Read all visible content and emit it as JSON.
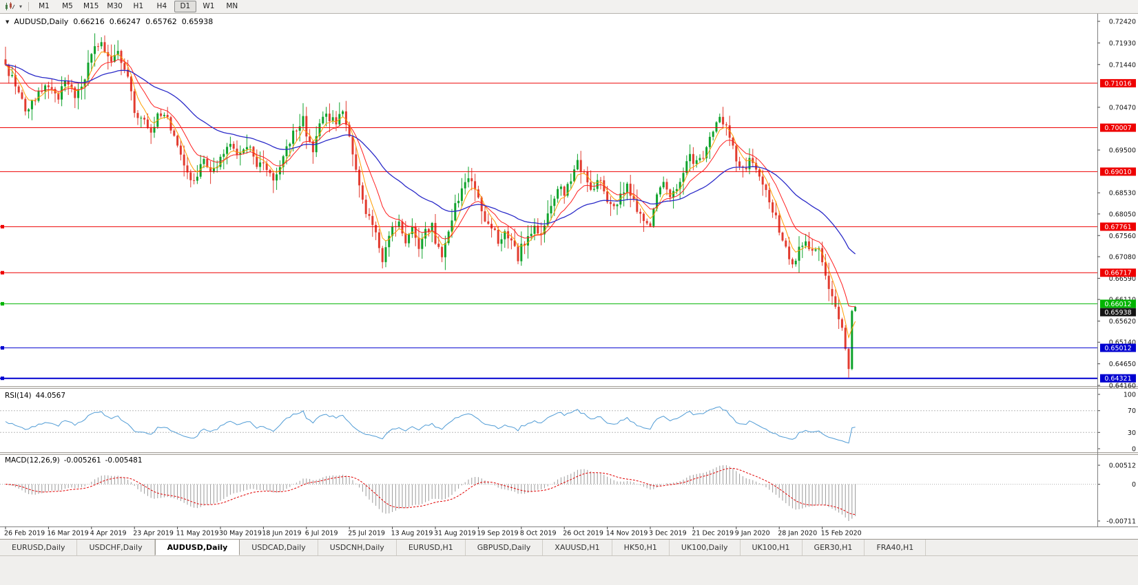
{
  "toolbar": {
    "timeframes": [
      {
        "label": "M1"
      },
      {
        "label": "M5"
      },
      {
        "label": "M15"
      },
      {
        "label": "M30"
      },
      {
        "label": "H1"
      },
      {
        "label": "H4"
      },
      {
        "label": "D1",
        "active": true
      },
      {
        "label": "W1"
      },
      {
        "label": "MN"
      }
    ]
  },
  "chart": {
    "title": "AUDUSD,Daily",
    "open": "0.66216",
    "high": "0.66247",
    "low": "0.65762",
    "close": "0.65938"
  },
  "chart_data": {
    "type": "candlestick",
    "symbol": "AUDUSD",
    "timeframe": "Daily",
    "last_ohlc": {
      "open": 0.66216,
      "high": 0.66247,
      "low": 0.65762,
      "close": 0.65938
    },
    "price_range": {
      "top": 0.7242,
      "bottom": 0.6416
    },
    "bar_count": 258,
    "colors": {
      "bull": "#0fa32c",
      "bear": "#e23b2f"
    },
    "price_axis": {
      "ticks": [
        "0.72420",
        "0.71930",
        "0.71440",
        "0.70470",
        "0.69500",
        "0.68530",
        "0.68050",
        "0.67560",
        "0.67080",
        "0.66590",
        "0.66110",
        "0.65620",
        "0.65140",
        "0.64650",
        "0.64160"
      ],
      "badges": [
        {
          "v": "0.71016",
          "bg": "#ee0000"
        },
        {
          "v": "0.70007",
          "bg": "#ee0000"
        },
        {
          "v": "0.69010",
          "bg": "#ee0000"
        },
        {
          "v": "0.67761",
          "bg": "#ee0000"
        },
        {
          "v": "0.66717",
          "bg": "#ee0000"
        },
        {
          "v": "0.66012",
          "bg": "#00b400"
        },
        {
          "v": "0.65938",
          "bg": "#151515"
        },
        {
          "v": "0.65012",
          "bg": "#0000d0"
        },
        {
          "v": "0.64321",
          "bg": "#0000d0"
        }
      ]
    },
    "lines": [
      {
        "v": 0.71016,
        "c": "#ee0000",
        "w": 1
      },
      {
        "v": 0.70007,
        "c": "#ee0000",
        "w": 1
      },
      {
        "v": 0.6901,
        "c": "#ee0000",
        "w": 1
      },
      {
        "v": 0.67761,
        "c": "#ee0000",
        "w": 1,
        "m": true
      },
      {
        "v": 0.66717,
        "c": "#ee0000",
        "w": 1,
        "m": true
      },
      {
        "v": 0.66012,
        "c": "#00b400",
        "w": 1,
        "m": true
      },
      {
        "v": 0.65012,
        "c": "#0000d0",
        "w": 1,
        "m": true
      },
      {
        "v": 0.64321,
        "c": "#0000d0",
        "w": 2,
        "m": true
      }
    ],
    "moving_averages": [
      {
        "name": "fast",
        "period": 5,
        "color": "#ff9e00",
        "width": 1
      },
      {
        "name": "medium",
        "period": 12,
        "color": "#ff1e1e",
        "width": 1
      },
      {
        "name": "slow",
        "period": 40,
        "color": "#2929c8",
        "width": 1.3
      }
    ],
    "anchors": [
      [
        0,
        0.7135
      ],
      [
        3,
        0.71
      ],
      [
        6,
        0.7038
      ],
      [
        10,
        0.7082
      ],
      [
        13,
        0.709
      ],
      [
        16,
        0.7062
      ],
      [
        18,
        0.7108
      ],
      [
        21,
        0.7075
      ],
      [
        24,
        0.7118
      ],
      [
        27,
        0.718
      ],
      [
        29,
        0.7196
      ],
      [
        32,
        0.715
      ],
      [
        34,
        0.7172
      ],
      [
        37,
        0.712
      ],
      [
        39,
        0.703
      ],
      [
        42,
        0.7015
      ],
      [
        44,
        0.6992
      ],
      [
        46,
        0.7032
      ],
      [
        49,
        0.7018
      ],
      [
        52,
        0.6955
      ],
      [
        55,
        0.6898
      ],
      [
        57,
        0.6872
      ],
      [
        60,
        0.6928
      ],
      [
        63,
        0.6902
      ],
      [
        65,
        0.6938
      ],
      [
        68,
        0.6972
      ],
      [
        70,
        0.6938
      ],
      [
        73,
        0.6962
      ],
      [
        76,
        0.692
      ],
      [
        78,
        0.6928
      ],
      [
        81,
        0.6878
      ],
      [
        84,
        0.6938
      ],
      [
        87,
        0.6992
      ],
      [
        90,
        0.7022
      ],
      [
        91,
        0.6988
      ],
      [
        93,
        0.6952
      ],
      [
        95,
        0.7002
      ],
      [
        97,
        0.7032
      ],
      [
        100,
        0.7008
      ],
      [
        102,
        0.7038
      ],
      [
        104,
        0.6978
      ],
      [
        106,
        0.69
      ],
      [
        108,
        0.6832
      ],
      [
        110,
        0.6796
      ],
      [
        112,
        0.6756
      ],
      [
        114,
        0.6705
      ],
      [
        116,
        0.6756
      ],
      [
        117,
        0.6775
      ],
      [
        119,
        0.6786
      ],
      [
        121,
        0.6746
      ],
      [
        123,
        0.6772
      ],
      [
        125,
        0.6716
      ],
      [
        127,
        0.6766
      ],
      [
        129,
        0.678
      ],
      [
        130,
        0.6736
      ],
      [
        132,
        0.6716
      ],
      [
        134,
        0.6762
      ],
      [
        136,
        0.6822
      ],
      [
        138,
        0.6856
      ],
      [
        140,
        0.6882
      ],
      [
        142,
        0.6866
      ],
      [
        143,
        0.6842
      ],
      [
        145,
        0.6796
      ],
      [
        147,
        0.6772
      ],
      [
        149,
        0.6746
      ],
      [
        151,
        0.6766
      ],
      [
        153,
        0.6742
      ],
      [
        155,
        0.6706
      ],
      [
        156,
        0.6732
      ],
      [
        158,
        0.6746
      ],
      [
        160,
        0.6776
      ],
      [
        162,
        0.6762
      ],
      [
        164,
        0.6812
      ],
      [
        166,
        0.6846
      ],
      [
        168,
        0.6872
      ],
      [
        169,
        0.6852
      ],
      [
        171,
        0.6886
      ],
      [
        173,
        0.6926
      ],
      [
        175,
        0.6896
      ],
      [
        177,
        0.6856
      ],
      [
        179,
        0.6882
      ],
      [
        181,
        0.6862
      ],
      [
        182,
        0.6842
      ],
      [
        184,
        0.6816
      ],
      [
        186,
        0.6846
      ],
      [
        188,
        0.6872
      ],
      [
        190,
        0.6836
      ],
      [
        192,
        0.6802
      ],
      [
        194,
        0.6776
      ],
      [
        195,
        0.6786
      ],
      [
        197,
        0.6842
      ],
      [
        199,
        0.6872
      ],
      [
        201,
        0.6836
      ],
      [
        203,
        0.6862
      ],
      [
        205,
        0.6902
      ],
      [
        207,
        0.6946
      ],
      [
        208,
        0.6912
      ],
      [
        210,
        0.6926
      ],
      [
        212,
        0.6956
      ],
      [
        214,
        0.6992
      ],
      [
        216,
        0.7032
      ],
      [
        218,
        0.7002
      ],
      [
        220,
        0.6956
      ],
      [
        221,
        0.6922
      ],
      [
        223,
        0.6902
      ],
      [
        225,
        0.6926
      ],
      [
        227,
        0.6906
      ],
      [
        229,
        0.6872
      ],
      [
        231,
        0.6832
      ],
      [
        233,
        0.6792
      ],
      [
        234,
        0.6756
      ],
      [
        236,
        0.6722
      ],
      [
        238,
        0.6692
      ],
      [
        240,
        0.6722
      ],
      [
        242,
        0.6746
      ],
      [
        244,
        0.6712
      ],
      [
        246,
        0.6732
      ],
      [
        247,
        0.6692
      ],
      [
        249,
        0.6642
      ],
      [
        251,
        0.6602
      ],
      [
        253,
        0.6548
      ],
      [
        255,
        0.6452
      ],
      [
        256,
        0.6585
      ],
      [
        257,
        0.65938
      ]
    ],
    "key_points": [
      {
        "index": 29,
        "type": "high",
        "price": 0.7206
      },
      {
        "index": 255,
        "type": "low",
        "price": 0.6434
      }
    ],
    "x_labels": [
      {
        "i": 0,
        "t": "26 Feb 2019"
      },
      {
        "i": 13,
        "t": "16 Mar 2019"
      },
      {
        "i": 26,
        "t": "4 Apr 2019"
      },
      {
        "i": 39,
        "t": "23 Apr 2019"
      },
      {
        "i": 52,
        "t": "11 May 2019"
      },
      {
        "i": 65,
        "t": "30 May 2019"
      },
      {
        "i": 78,
        "t": "18 Jun 2019"
      },
      {
        "i": 91,
        "t": "6 Jul 2019"
      },
      {
        "i": 104,
        "t": "25 Jul 2019"
      },
      {
        "i": 117,
        "t": "13 Aug 2019"
      },
      {
        "i": 130,
        "t": "31 Aug 2019"
      },
      {
        "i": 143,
        "t": "19 Sep 2019"
      },
      {
        "i": 156,
        "t": "8 Oct 2019"
      },
      {
        "i": 169,
        "t": "26 Oct 2019"
      },
      {
        "i": 182,
        "t": "14 Nov 2019"
      },
      {
        "i": 195,
        "t": "3 Dec 2019"
      },
      {
        "i": 208,
        "t": "21 Dec 2019"
      },
      {
        "i": 221,
        "t": "9 Jan 2020"
      },
      {
        "i": 234,
        "t": "28 Jan 2020"
      },
      {
        "i": 247,
        "t": "15 Feb 2020"
      }
    ],
    "rsi": {
      "name": "RSI(14)",
      "value": "44.0567",
      "period": 14,
      "axis": [
        "100",
        "70",
        "30",
        "0"
      ],
      "levels": [
        70,
        30
      ],
      "color": "#4f9bd5"
    },
    "macd": {
      "name": "MACD(12,26,9)",
      "main": "-0.005261",
      "signal": "-0.005481",
      "fast": 12,
      "slow": 26,
      "signal_period": 9,
      "axis_max": "0.00512",
      "axis_zero": "0",
      "axis_min": "-0.00711",
      "hist_color": "#9a9a9a",
      "signal_color": "#e00000"
    }
  },
  "tabs": [
    {
      "label": "EURUSD,Daily"
    },
    {
      "label": "USDCHF,Daily"
    },
    {
      "label": "AUDUSD,Daily",
      "active": true
    },
    {
      "label": "USDCAD,Daily"
    },
    {
      "label": "USDCNH,Daily"
    },
    {
      "label": "EURUSD,H1"
    },
    {
      "label": "GBPUSD,Daily"
    },
    {
      "label": "XAUUSD,H1"
    },
    {
      "label": "HK50,H1"
    },
    {
      "label": "UK100,Daily"
    },
    {
      "label": "UK100,H1"
    },
    {
      "label": "GER30,H1"
    },
    {
      "label": "FRA40,H1"
    }
  ]
}
